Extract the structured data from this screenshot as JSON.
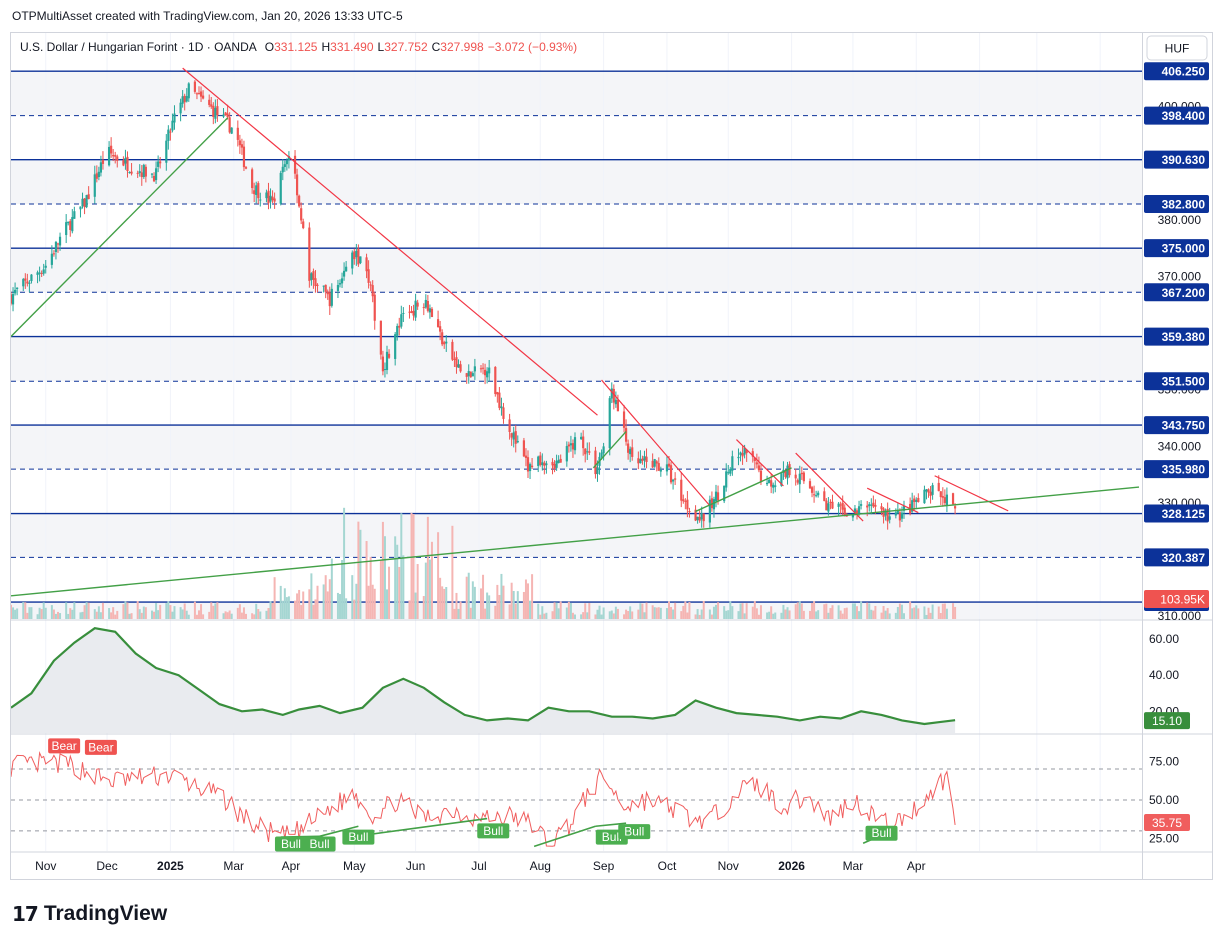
{
  "header": {
    "caption": "OTPMultiAsset created with TradingView.com, Jan 20, 2026 13:33 UTC-5"
  },
  "legend": {
    "symbol": "U.S. Dollar / Hungarian Forint · 1D · OANDA",
    "o_label": "O",
    "o_value": "331.125",
    "h_label": "H",
    "h_value": "331.490",
    "l_label": "L",
    "l_value": "327.752",
    "c_label": "C",
    "c_value": "327.998",
    "change": "−3.072 (−0.93%)"
  },
  "currency_button": "HUF",
  "footer": {
    "logo_text": "TradingView",
    "logo_mark": "17"
  },
  "colors": {
    "up": "#26a69a",
    "down": "#ef5350",
    "level_line": "#0c3299",
    "trend_red": "#f23645",
    "trend_green": "#43a047",
    "indicator_green": "#388e3c",
    "rsi_red": "#f05e5e",
    "price_badge": "#ef5350"
  },
  "chart_data": [
    {
      "type": "candlestick",
      "title": "U.S. Dollar / Hungarian Forint · 1D · OANDA",
      "ylim": [
        309.5,
        413.0
      ],
      "x_ticks": [
        "Nov",
        "Dec",
        "2025",
        "Mar",
        "Apr",
        "May",
        "Jun",
        "Jul",
        "Aug",
        "Sep",
        "Oct",
        "Nov",
        "2026",
        "Mar",
        "Apr"
      ],
      "y_ticks": [
        "400.000",
        "390.000",
        "380.000",
        "370.000",
        "360.000",
        "350.000",
        "340.000",
        "330.000",
        "320.000",
        "310.000"
      ],
      "x_months": [
        "2024-10-15",
        "2024-11",
        "2024-12",
        "2025-01",
        "2025-02",
        "2025-03",
        "2025-04",
        "2025-05",
        "2025-06",
        "2025-07",
        "2025-08",
        "2025-09",
        "2025-10",
        "2025-11",
        "2025-12",
        "2026-01",
        "2026-02",
        "2026-03",
        "2026-04",
        "2026-04-20"
      ],
      "close_path": {
        "x": [
          "2024-10-15",
          "2024-11-01",
          "2024-11-10",
          "2024-11-20",
          "2024-12-01",
          "2024-12-15",
          "2024-12-25",
          "2025-01-03",
          "2025-01-10",
          "2025-01-20",
          "2025-02-01",
          "2025-02-10",
          "2025-02-20",
          "2025-03-01",
          "2025-03-10",
          "2025-03-20",
          "2025-04-01",
          "2025-04-07",
          "2025-04-15",
          "2025-04-25",
          "2025-05-06",
          "2025-05-15",
          "2025-05-25",
          "2025-06-05",
          "2025-06-15",
          "2025-06-25",
          "2025-07-01",
          "2025-07-10",
          "2025-07-20",
          "2025-07-28",
          "2025-08-01",
          "2025-08-05",
          "2025-08-15",
          "2025-08-25",
          "2025-09-01",
          "2025-09-10",
          "2025-09-18",
          "2025-09-25",
          "2025-10-03",
          "2025-10-10",
          "2025-10-20",
          "2025-10-31",
          "2025-11-10",
          "2025-11-20",
          "2025-12-01",
          "2025-12-10",
          "2025-12-20",
          "2026-01-01",
          "2026-01-08",
          "2026-01-15",
          "2026-01-20"
        ],
        "y": [
          366.5,
          372,
          378,
          383,
          392,
          389,
          388,
          398,
          403,
          400,
          396,
          386,
          383,
          393,
          370,
          366,
          374,
          372,
          354,
          363,
          366,
          358,
          352,
          354,
          344,
          336,
          338,
          337,
          342,
          336,
          340,
          350,
          337,
          337,
          336,
          330,
          327,
          331,
          337,
          339,
          333,
          336,
          333,
          329,
          328,
          330,
          327,
          330,
          332,
          331,
          328
        ]
      },
      "horizontal_levels": [
        {
          "value": 406.25,
          "label": "406.250",
          "style": "solid"
        },
        {
          "value": 398.4,
          "label": "398.400",
          "style": "dashed"
        },
        {
          "value": 390.63,
          "label": "390.630",
          "style": "solid"
        },
        {
          "value": 382.8,
          "label": "382.800",
          "style": "dashed"
        },
        {
          "value": 375.0,
          "label": "375.000",
          "style": "solid"
        },
        {
          "value": 367.2,
          "label": "367.200",
          "style": "dashed"
        },
        {
          "value": 359.38,
          "label": "359.380",
          "style": "solid"
        },
        {
          "value": 351.5,
          "label": "351.500",
          "style": "dashed"
        },
        {
          "value": 343.75,
          "label": "343.750",
          "style": "solid"
        },
        {
          "value": 335.98,
          "label": "335.980",
          "style": "dashed"
        },
        {
          "value": 328.125,
          "label": "328.125",
          "style": "solid"
        },
        {
          "value": 320.387,
          "label": "320.387",
          "style": "dashed"
        },
        {
          "value": 312.5,
          "label": "312.500",
          "style": "solid"
        },
        {
          "value": 414.1,
          "label": "",
          "style": "dashed"
        }
      ],
      "trendlines_red": [
        {
          "x": [
            "2025-01-07",
            "2025-07-29"
          ],
          "y": [
            406.8,
            345.5
          ]
        },
        {
          "x": [
            "2025-07-31",
            "2025-09-22"
          ],
          "y": [
            351.7,
            329.5
          ]
        },
        {
          "x": [
            "2025-10-05",
            "2025-10-28"
          ],
          "y": [
            341.2,
            333.0
          ]
        },
        {
          "x": [
            "2025-11-03",
            "2025-12-06"
          ],
          "y": [
            338.8,
            326.8
          ]
        },
        {
          "x": [
            "2025-12-08",
            "2026-01-02"
          ],
          "y": [
            332.6,
            328.3
          ]
        },
        {
          "x": [
            "2026-01-10",
            "2026-02-15"
          ],
          "y": [
            334.8,
            328.6
          ]
        }
      ],
      "trendlines_green": [
        {
          "x": [
            "2024-10-15",
            "2025-01-29"
          ],
          "y": [
            359.4,
            398.0
          ]
        },
        {
          "x": [
            "2024-10-15",
            "2026-04-20"
          ],
          "y": [
            313.6,
            332.8
          ]
        },
        {
          "x": [
            "2025-07-27",
            "2025-08-12"
          ],
          "y": [
            336.2,
            342.6
          ]
        },
        {
          "x": [
            "2025-09-15",
            "2025-11-01"
          ],
          "y": [
            328.5,
            336.2
          ]
        }
      ],
      "last_price_label": "103.95K",
      "volume_label": "103.95K"
    },
    {
      "type": "line",
      "title": "",
      "ylim": [
        8.0,
        70.0
      ],
      "y_ticks": [
        "60.00",
        "40.00",
        "20.00"
      ],
      "last_label": "15.10",
      "series": [
        {
          "x": [
            "2024-10-15",
            "2024-10-25",
            "2024-11-05",
            "2024-11-15",
            "2024-11-25",
            "2024-12-05",
            "2024-12-15",
            "2024-12-25",
            "2025-01-05",
            "2025-01-15",
            "2025-01-25",
            "2025-02-05",
            "2025-02-15",
            "2025-02-25",
            "2025-03-05",
            "2025-03-15",
            "2025-03-25",
            "2025-04-05",
            "2025-04-15",
            "2025-04-25",
            "2025-05-05",
            "2025-05-15",
            "2025-05-25",
            "2025-06-05",
            "2025-06-15",
            "2025-06-25",
            "2025-07-05",
            "2025-07-15",
            "2025-07-25",
            "2025-08-05",
            "2025-08-15",
            "2025-08-25",
            "2025-09-05",
            "2025-09-15",
            "2025-09-25",
            "2025-10-05",
            "2025-10-15",
            "2025-10-25",
            "2025-11-05",
            "2025-11-15",
            "2025-11-25",
            "2025-12-05",
            "2025-12-15",
            "2025-12-25",
            "2026-01-05",
            "2026-01-12",
            "2026-01-20"
          ],
          "y": [
            22,
            30,
            48,
            58,
            66,
            64,
            52,
            44,
            40,
            32,
            24,
            20,
            21,
            18,
            21,
            23,
            19,
            22,
            33,
            38,
            33,
            25,
            18,
            15,
            16,
            15,
            22,
            20,
            20,
            17,
            17,
            16,
            18,
            26,
            22,
            19,
            18,
            17,
            15,
            17,
            16,
            20,
            18,
            15,
            13,
            14,
            15.1
          ]
        }
      ]
    },
    {
      "type": "line",
      "title": "",
      "ylim": [
        17.0,
        92.0
      ],
      "y_ticks": [
        "75.00",
        "50.00",
        "25.00"
      ],
      "reference_lines": [
        70,
        50,
        30
      ],
      "last_label": "35.75",
      "series": [
        {
          "x": [
            "2024-10-15",
            "2024-11-01",
            "2024-11-15",
            "2024-12-01",
            "2024-12-15",
            "2025-01-01",
            "2025-01-15",
            "2025-01-28",
            "2025-02-10",
            "2025-02-24",
            "2025-03-05",
            "2025-03-18",
            "2025-04-01",
            "2025-04-10",
            "2025-04-22",
            "2025-05-05",
            "2025-05-18",
            "2025-06-01",
            "2025-06-15",
            "2025-06-28",
            "2025-07-05",
            "2025-07-15",
            "2025-07-25",
            "2025-08-01",
            "2025-08-10",
            "2025-08-22",
            "2025-09-05",
            "2025-09-15",
            "2025-09-25",
            "2025-10-05",
            "2025-10-15",
            "2025-10-28",
            "2025-11-08",
            "2025-11-20",
            "2025-12-01",
            "2025-12-10",
            "2025-12-20",
            "2026-01-01",
            "2026-01-10",
            "2026-01-16",
            "2026-01-20"
          ],
          "y": [
            72,
            74,
            72,
            62,
            64,
            66,
            58,
            50,
            34,
            26,
            30,
            42,
            55,
            40,
            50,
            38,
            44,
            38,
            40,
            34,
            22,
            34,
            55,
            66,
            46,
            50,
            44,
            36,
            40,
            56,
            60,
            46,
            52,
            38,
            50,
            42,
            32,
            45,
            58,
            65,
            35.75
          ]
        }
      ],
      "labels": [
        {
          "text": "Bear",
          "x": "2024-11-10",
          "value": 85,
          "type": "bear"
        },
        {
          "text": "Bear",
          "x": "2024-11-28",
          "value": 84,
          "type": "bear"
        },
        {
          "text": "Bull",
          "x": "2025-03-01",
          "value": 21.5,
          "type": "bull"
        },
        {
          "text": "Bull",
          "x": "2025-03-15",
          "value": 21.5,
          "type": "bull"
        },
        {
          "text": "Bull",
          "x": "2025-04-03",
          "value": 26,
          "type": "bull"
        },
        {
          "text": "Bull",
          "x": "2025-06-08",
          "value": 30,
          "type": "bull"
        },
        {
          "text": "Bull",
          "x": "2025-08-05",
          "value": 26,
          "type": "bull"
        },
        {
          "text": "Bull",
          "x": "2025-08-16",
          "value": 29.5,
          "type": "bull"
        },
        {
          "text": "Bull",
          "x": "2025-12-15",
          "value": 28.5,
          "type": "bull"
        }
      ],
      "divergence_lines": [
        {
          "x": [
            "2025-02-24",
            "2025-03-15"
          ],
          "y": [
            26,
            26.5
          ],
          "type": "bull"
        },
        {
          "x": [
            "2025-03-15",
            "2025-04-03"
          ],
          "y": [
            26.5,
            33
          ],
          "type": "bull"
        },
        {
          "x": [
            "2025-04-10",
            "2025-06-05"
          ],
          "y": [
            28,
            38
          ],
          "type": "bull"
        },
        {
          "x": [
            "2025-06-28",
            "2025-07-28"
          ],
          "y": [
            20,
            33
          ],
          "type": "bull"
        },
        {
          "x": [
            "2025-07-28",
            "2025-08-12"
          ],
          "y": [
            33,
            35
          ],
          "type": "bull"
        },
        {
          "x": [
            "2025-12-06",
            "2025-12-20"
          ],
          "y": [
            22,
            30
          ],
          "type": "bull"
        }
      ]
    }
  ]
}
